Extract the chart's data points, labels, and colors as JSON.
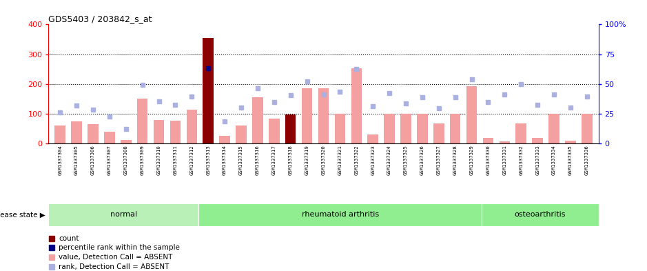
{
  "title": "GDS5403 / 203842_s_at",
  "samples": [
    "GSM1337304",
    "GSM1337305",
    "GSM1337306",
    "GSM1337307",
    "GSM1337308",
    "GSM1337309",
    "GSM1337310",
    "GSM1337311",
    "GSM1337312",
    "GSM1337313",
    "GSM1337314",
    "GSM1337315",
    "GSM1337316",
    "GSM1337317",
    "GSM1337318",
    "GSM1337319",
    "GSM1337320",
    "GSM1337321",
    "GSM1337322",
    "GSM1337323",
    "GSM1337324",
    "GSM1337325",
    "GSM1337326",
    "GSM1337327",
    "GSM1337328",
    "GSM1337329",
    "GSM1337330",
    "GSM1337331",
    "GSM1337332",
    "GSM1337333",
    "GSM1337334",
    "GSM1337335",
    "GSM1337336"
  ],
  "bar_values": [
    60,
    75,
    65,
    40,
    13,
    150,
    80,
    78,
    115,
    355,
    25,
    60,
    155,
    85,
    97,
    185,
    185,
    100,
    252,
    30,
    100,
    100,
    100,
    68,
    100,
    192,
    20,
    7,
    68,
    20,
    100,
    10,
    100
  ],
  "rank_values": [
    105,
    127,
    115,
    92,
    50,
    198,
    142,
    130,
    157,
    252,
    75,
    122,
    185,
    140,
    163,
    210,
    165,
    175,
    250,
    125,
    170,
    135,
    155,
    118,
    155,
    215,
    140,
    165,
    200,
    130,
    165,
    120,
    158
  ],
  "bar_is_dark": [
    false,
    false,
    false,
    false,
    false,
    false,
    false,
    false,
    false,
    true,
    false,
    false,
    false,
    false,
    true,
    false,
    false,
    false,
    false,
    false,
    false,
    false,
    false,
    false,
    false,
    false,
    false,
    false,
    false,
    false,
    false,
    false,
    false
  ],
  "rank_is_dark": [
    false,
    false,
    false,
    false,
    false,
    false,
    false,
    false,
    false,
    true,
    false,
    false,
    false,
    false,
    false,
    false,
    false,
    false,
    false,
    false,
    false,
    false,
    false,
    false,
    false,
    false,
    false,
    false,
    false,
    false,
    false,
    false,
    false
  ],
  "group_boundaries": [
    0,
    9,
    26,
    33
  ],
  "group_labels": [
    "normal",
    "rheumatoid arthritis",
    "osteoarthritis"
  ],
  "group_colors": [
    "#b8f0b8",
    "#90ee90",
    "#90ee90"
  ],
  "ylim_left": [
    0,
    400
  ],
  "ylim_right": [
    0,
    100
  ],
  "yticks_left": [
    0,
    100,
    200,
    300,
    400
  ],
  "yticks_right": [
    0,
    25,
    50,
    75,
    100
  ],
  "bar_color_normal": "#f4a0a0",
  "bar_color_dark": "#8b0000",
  "rank_color_normal": "#aab0e0",
  "rank_color_dark": "#00008b"
}
